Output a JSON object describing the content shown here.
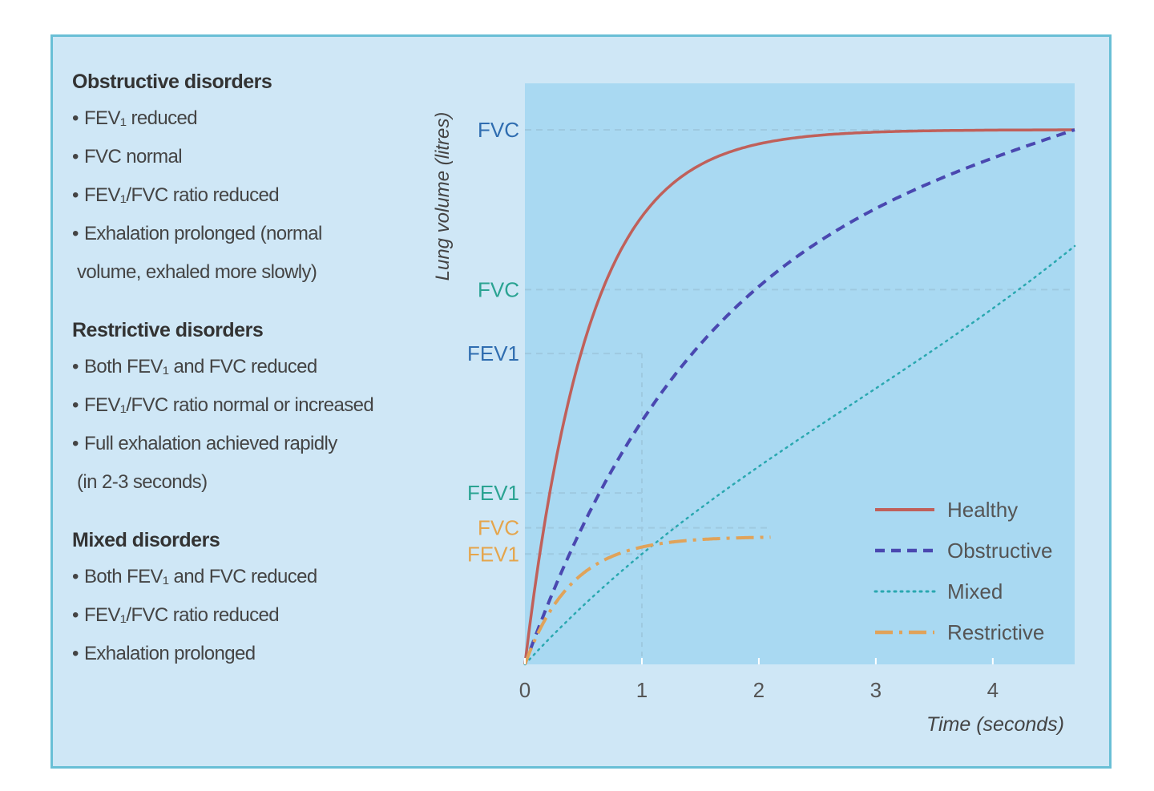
{
  "panel": {
    "sections": [
      {
        "heading": "Obstructive disorders",
        "items": [
          "FEV₁ reduced",
          "FVC normal",
          "FEV₁/FVC ratio reduced",
          "Exhalation prolonged (normal",
          "volume, exhaled more slowly)"
        ],
        "continuation_index": 4
      },
      {
        "heading": "Restrictive disorders",
        "items": [
          "Both FEV₁ and FVC reduced",
          "FEV₁/FVC ratio normal or increased",
          "Full exhalation achieved rapidly",
          "(in 2-3 seconds)"
        ],
        "continuation_index": 3
      },
      {
        "heading": "Mixed disorders",
        "items": [
          "Both FEV₁ and FVC reduced",
          "FEV₁/FVC ratio reduced",
          "Exhalation prolonged"
        ],
        "continuation_index": -1
      }
    ]
  },
  "chart_data": {
    "type": "line",
    "title": "",
    "xlabel": "Time (seconds)",
    "ylabel": "Lung volume (litres)",
    "xlim": [
      0,
      4.7
    ],
    "ylim": [
      0,
      1
    ],
    "x_ticks": [
      0,
      1,
      2,
      3,
      4
    ],
    "grid": false,
    "legend_position": "bottom-right",
    "series": [
      {
        "name": "Healthy",
        "style": "solid",
        "color": "#c0605a",
        "final": 0.92,
        "tau": 0.55,
        "k": 0.45,
        "x_end": 4.7
      },
      {
        "name": "Obstructive",
        "style": "dashed",
        "color": "#4a48b0",
        "final": 0.92,
        "tau": 1.65,
        "k": 0.08,
        "x_end": 4.7
      },
      {
        "name": "Mixed",
        "style": "dotted",
        "color": "#2aa8b0",
        "final": 0.72,
        "tau": 3.3,
        "k": 0.06,
        "x_end": 4.7
      },
      {
        "name": "Restrictive",
        "style": "dashdot",
        "color": "#e0a35a",
        "final": 0.22,
        "tau": 0.4,
        "k": 0,
        "x_end": 2.1
      }
    ],
    "reference_lines": [
      {
        "label": "FVC",
        "y": 0.92,
        "color": "#2f6db0",
        "x_to": 4.7
      },
      {
        "label": "FVC",
        "y": 0.645,
        "color": "#2aa392",
        "x_to": 4.7
      },
      {
        "label": "FEV1",
        "y": 0.535,
        "color": "#2f6db0",
        "x_to": 1
      },
      {
        "label": "FEV1",
        "y": 0.295,
        "color": "#2aa392",
        "x_to": 1
      },
      {
        "label": "FVC",
        "y": 0.235,
        "color": "#e5a54c",
        "x_to": 2.1
      },
      {
        "label": "FEV1",
        "y": 0.19,
        "color": "#e5a54c",
        "x_to": 1
      }
    ]
  }
}
